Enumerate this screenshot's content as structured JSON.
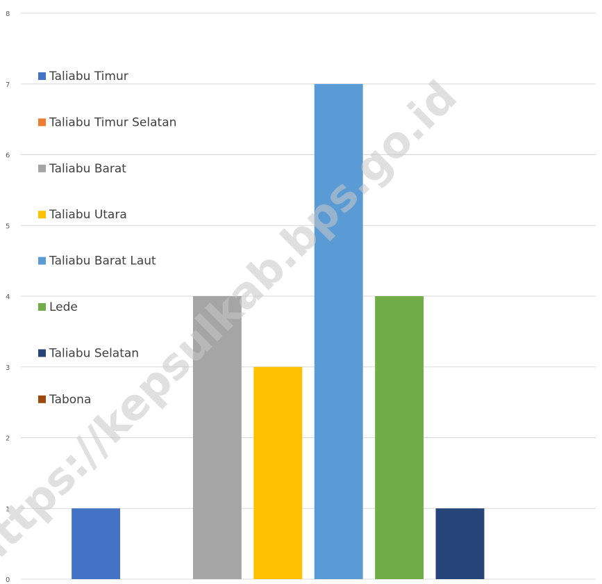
{
  "chart_data": {
    "type": "bar",
    "series": [
      {
        "name": "Taliabu Timur",
        "color": "#4472c4",
        "values": [
          1
        ]
      },
      {
        "name": "Taliabu Timur Selatan",
        "color": "#ed7d31",
        "values": [
          0
        ]
      },
      {
        "name": "Taliabu Barat",
        "color": "#a5a5a5",
        "values": [
          4
        ]
      },
      {
        "name": "Taliabu Utara",
        "color": "#ffc000",
        "values": [
          3
        ]
      },
      {
        "name": "Taliabu Barat Laut",
        "color": "#5b9bd5",
        "values": [
          7
        ]
      },
      {
        "name": "Lede",
        "color": "#70ad47",
        "values": [
          4
        ]
      },
      {
        "name": "Taliabu Selatan",
        "color": "#264478",
        "values": [
          1
        ]
      },
      {
        "name": "Tabona",
        "color": "#9e480e",
        "values": [
          0
        ]
      }
    ],
    "ylim": [
      0,
      8
    ],
    "yticks": [
      0,
      1,
      2,
      3,
      4,
      5,
      6,
      7,
      8
    ],
    "grid": true,
    "legend": "left",
    "watermark": "https://kepsulkab.bps.go.id"
  }
}
